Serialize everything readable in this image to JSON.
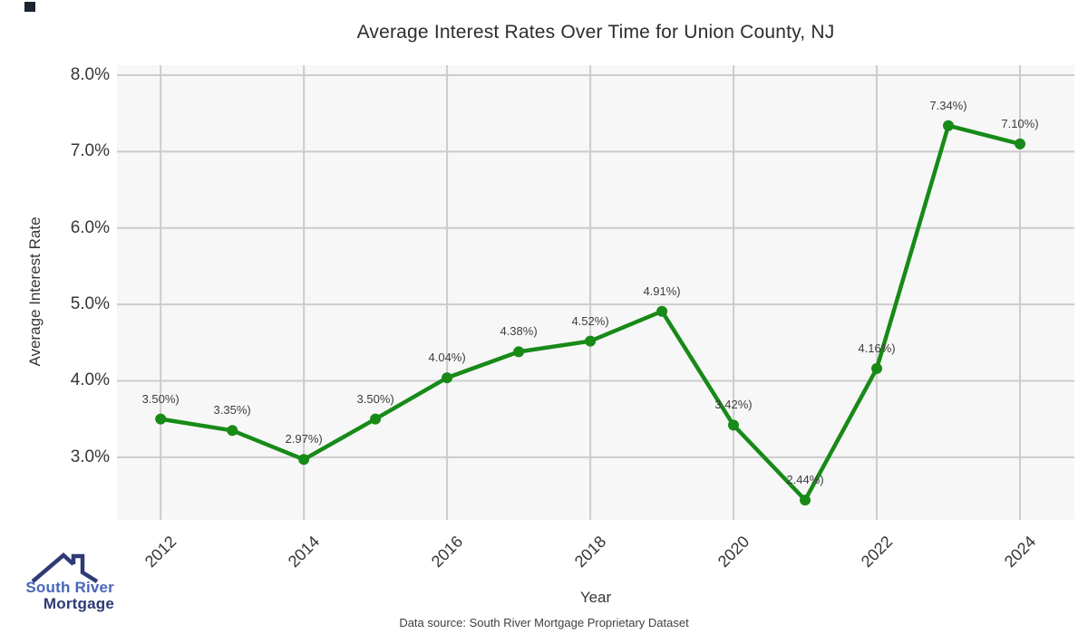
{
  "chart_data": {
    "type": "line",
    "title": "Average Interest Rates Over Time for Union County, NJ",
    "xlabel": "Year",
    "ylabel": "Average Interest Rate",
    "x": [
      2012,
      2013,
      2014,
      2015,
      2016,
      2017,
      2018,
      2019,
      2020,
      2021,
      2022,
      2023,
      2024
    ],
    "values": [
      3.5,
      3.35,
      2.97,
      3.5,
      4.04,
      4.38,
      4.52,
      4.91,
      3.42,
      2.44,
      4.16,
      7.34,
      7.1
    ],
    "point_labels": [
      "3.50%)",
      "3.35%)",
      "2.97%)",
      "3.50%)",
      "4.04%)",
      "4.38%)",
      "4.52%)",
      "4.91%)",
      "3.42%)",
      "2.44%)",
      "4.16%)",
      "7.34%)",
      "7.10%)"
    ],
    "xticks": {
      "values": [
        2012,
        2014,
        2016,
        2018,
        2020,
        2022,
        2024
      ],
      "labels": [
        "2012",
        "2014",
        "2016",
        "2018",
        "2020",
        "2022",
        "2024"
      ]
    },
    "yticks": {
      "values": [
        3.0,
        4.0,
        5.0,
        6.0,
        7.0,
        8.0
      ],
      "labels": [
        "3.0%",
        "4.0%",
        "5.0%",
        "6.0%",
        "7.0%",
        "8.0%"
      ]
    },
    "xlim": [
      2011.39,
      2024.76
    ],
    "ylim": [
      2.18,
      8.13
    ],
    "grid": true,
    "legend": false,
    "line_color": "#178a17",
    "marker": "circle"
  },
  "footer": {
    "source": "Data source: South River Mortgage Proprietary Dataset"
  },
  "logo": {
    "line1": "South River",
    "line2": "Mortgage"
  },
  "colors": {
    "plot_background": "#f7f7f7",
    "gridline": "#cccccc",
    "line": "#178a17",
    "title_text": "#2d2d2d",
    "tick_text": "#363636",
    "logo_blue": "#4767b8",
    "logo_navy": "#2d3a75"
  }
}
